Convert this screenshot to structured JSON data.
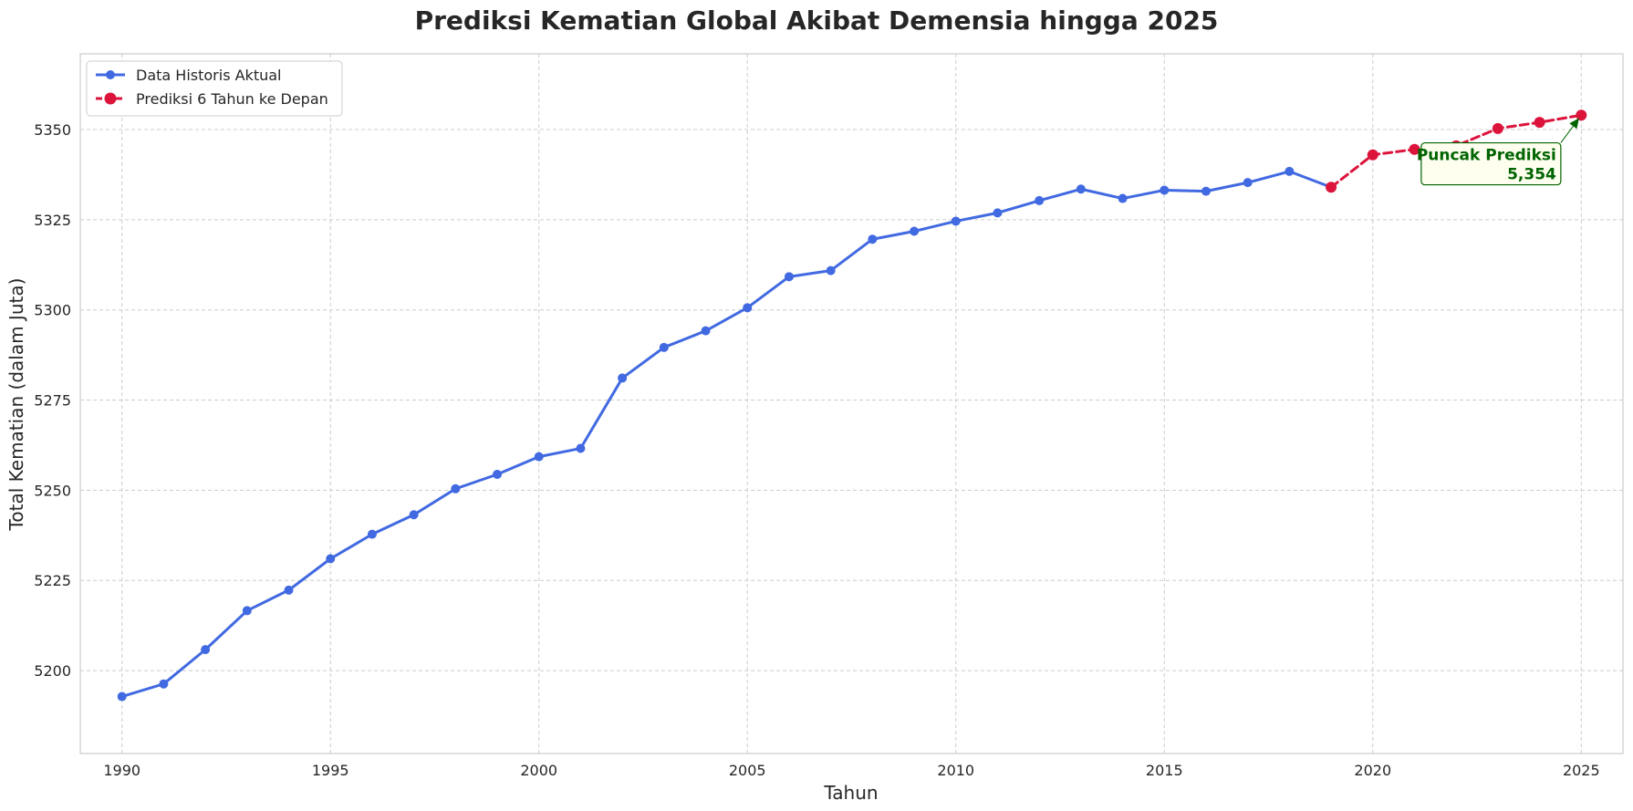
{
  "chart_data": {
    "type": "line",
    "title": "Prediksi Kematian Global Akibat Demensia hingga 2025",
    "xlabel": "Tahun",
    "ylabel": "Total Kematian (dalam Juta)",
    "xlim": [
      1989,
      2026
    ],
    "ylim": [
      5177,
      5371
    ],
    "x_ticks": [
      1990,
      1995,
      2000,
      2005,
      2010,
      2015,
      2020,
      2025
    ],
    "y_ticks": [
      5200,
      5225,
      5250,
      5275,
      5300,
      5325,
      5350
    ],
    "grid": true,
    "legend_position": "top-left",
    "series": [
      {
        "name": "Data Historis Aktual",
        "color": "#4169E1",
        "style": "solid",
        "x": [
          1990,
          1991,
          1992,
          1993,
          1994,
          1995,
          1996,
          1997,
          1998,
          1999,
          2000,
          2001,
          2002,
          2003,
          2004,
          2005,
          2006,
          2007,
          2008,
          2009,
          2010,
          2011,
          2012,
          2013,
          2014,
          2015,
          2016,
          2017,
          2018,
          2019
        ],
        "values": [
          5192.8,
          5196.3,
          5205.8,
          5216.6,
          5222.3,
          5231.0,
          5237.8,
          5243.2,
          5250.4,
          5254.4,
          5259.3,
          5261.6,
          5281.1,
          5289.6,
          5294.2,
          5300.6,
          5309.2,
          5310.9,
          5319.6,
          5321.8,
          5324.6,
          5326.9,
          5330.3,
          5333.5,
          5330.9,
          5333.2,
          5332.9,
          5335.3,
          5338.4,
          5334.0
        ]
      },
      {
        "name": "Prediksi 6 Tahun ke Depan",
        "color": "#DC143C",
        "style": "dashed",
        "x": [
          2019,
          2020,
          2021,
          2022,
          2023,
          2024,
          2025
        ],
        "values": [
          5334.0,
          5343.0,
          5344.5,
          5345.5,
          5350.3,
          5352.0,
          5354.0
        ]
      }
    ],
    "annotation": {
      "line1": "Puncak Prediksi",
      "line2": "5,354",
      "x": 2025,
      "y": 5354.0,
      "text_x": 2024.4,
      "text_y": 5340.5,
      "color": "#006400",
      "box_fill": "#FFFFF0"
    }
  }
}
